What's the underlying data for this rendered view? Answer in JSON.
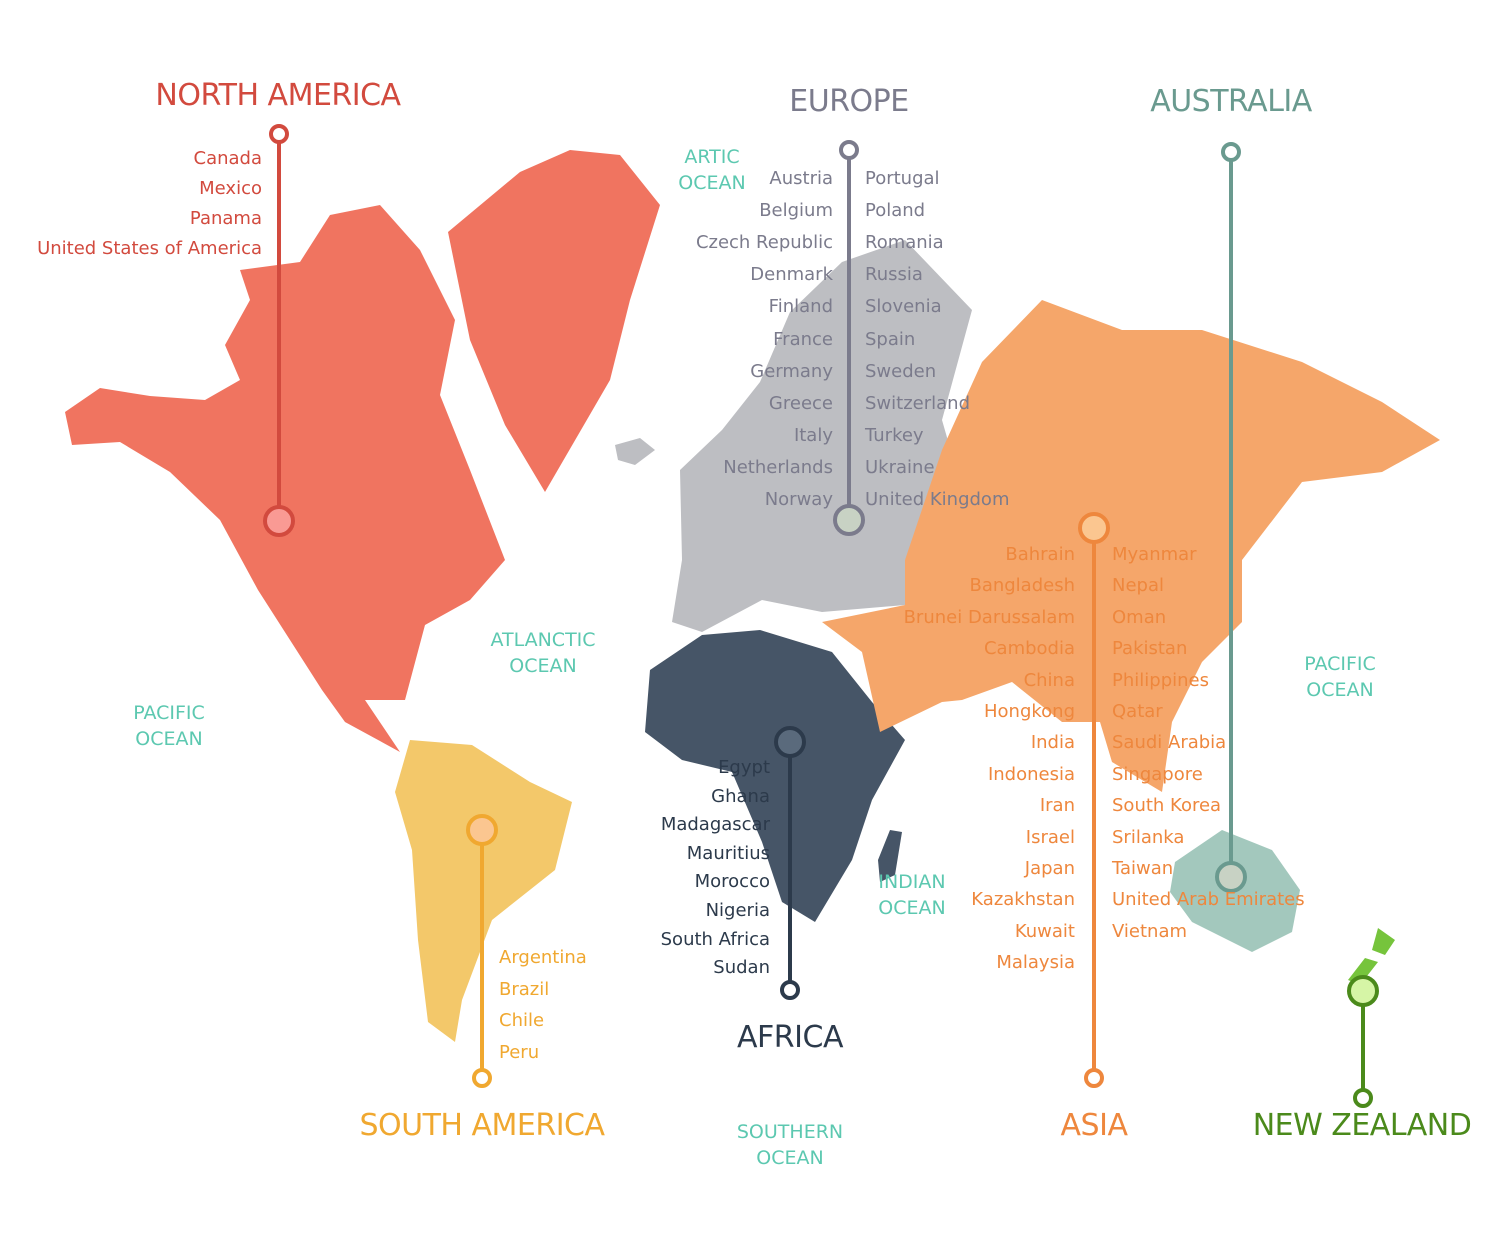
{
  "colors": {
    "north_america": "#f07460",
    "north_america_text": "#d24a3e",
    "europe": "#bdbec2",
    "europe_text": "#7b7b8c",
    "australia": "#a3c8bd",
    "australia_text": "#6a9a8f",
    "africa": "#465567",
    "africa_text": "#2c3a4b",
    "south_america": "#f3c86a",
    "south_america_text": "#f0a830",
    "asia": "#f5a66a",
    "asia_text": "#ee873d",
    "new_zealand": "#76c43c",
    "new_zealand_text": "#4b8a1b",
    "ocean_text": "#5cc8b0"
  },
  "regions": {
    "north_america": {
      "title": "NORTH AMERICA",
      "countries": [
        "Canada",
        "Mexico",
        "Panama",
        "United States of America"
      ]
    },
    "europe": {
      "title": "EUROPE",
      "countries_left": [
        "Austria",
        "Belgium",
        "Czech Republic",
        "Denmark",
        "Finland",
        "France",
        "Germany",
        "Greece",
        "Italy",
        "Netherlands",
        "Norway"
      ],
      "countries_right": [
        "Portugal",
        "Poland",
        "Romania",
        "Russia",
        "Slovenia",
        "Spain",
        "Sweden",
        "Switzerland",
        "Turkey",
        "Ukraine",
        "United Kingdom"
      ]
    },
    "australia": {
      "title": "AUSTRALIA"
    },
    "africa": {
      "title": "AFRICA",
      "countries": [
        "Egypt",
        "Ghana",
        "Madagascar",
        "Mauritius",
        "Morocco",
        "Nigeria",
        "South Africa",
        "Sudan"
      ]
    },
    "south_america": {
      "title": "SOUTH AMERICA",
      "countries": [
        "Argentina",
        "Brazil",
        "Chile",
        "Peru"
      ]
    },
    "asia": {
      "title": "ASIA",
      "countries_left": [
        "Bahrain",
        "Bangladesh",
        "Brunei Darussalam",
        "Cambodia",
        "China",
        "Hongkong",
        "India",
        "Indonesia",
        "Iran",
        "Israel",
        "Japan",
        "Kazakhstan",
        "Kuwait",
        "Malaysia"
      ],
      "countries_right": [
        "Myanmar",
        "Nepal",
        "Oman",
        "Pakistan",
        "Philippines",
        "Qatar",
        "Saudi Arabia",
        "Singapore",
        "South Korea",
        "Srilanka",
        "Taiwan",
        "United Arab Emirates",
        "Vietnam"
      ]
    },
    "new_zealand": {
      "title": "NEW ZEALAND"
    }
  },
  "oceans": {
    "artic": [
      "ARTIC",
      "OCEAN"
    ],
    "atlantic": [
      "ATLANCTIC",
      "OCEAN"
    ],
    "pacific_west": [
      "PACIFIC",
      "OCEAN"
    ],
    "pacific_east": [
      "PACIFIC",
      "OCEAN"
    ],
    "indian": [
      "INDIAN",
      "OCEAN"
    ],
    "southern": [
      "SOUTHERN",
      "OCEAN"
    ]
  }
}
